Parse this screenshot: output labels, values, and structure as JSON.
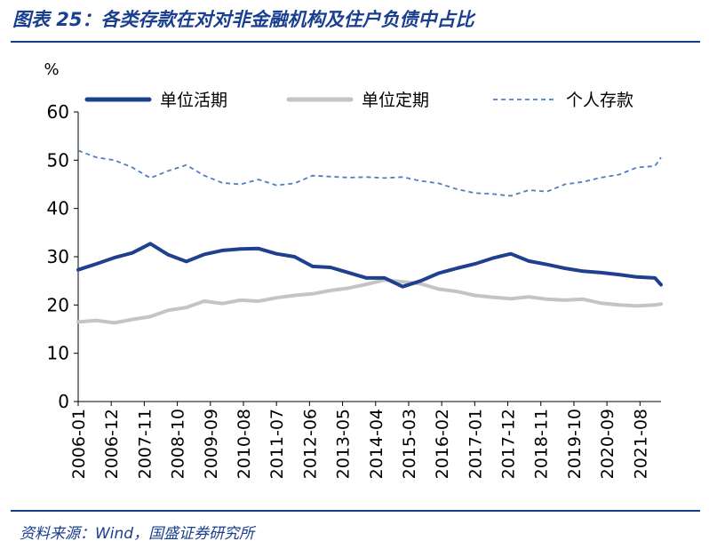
{
  "figure": {
    "title": "图表 25：各类存款在对对非金融机构及住户负债中占比",
    "source": "资料来源：Wind，国盛证券研究所"
  },
  "colors": {
    "title": "#1a3f8f",
    "series_1": "#1f3f8f",
    "series_2": "#c4c4c4",
    "series_3": "#4f7fbf"
  },
  "chart_data": {
    "type": "line",
    "title": "",
    "xlabel": "",
    "ylabel": "%",
    "ylim": [
      0,
      60
    ],
    "yticks": [
      0,
      10,
      20,
      30,
      40,
      50,
      60
    ],
    "xticks": [
      "2006-01",
      "2006-12",
      "2007-11",
      "2008-10",
      "2009-09",
      "2010-08",
      "2011-07",
      "2012-06",
      "2013-05",
      "2014-04",
      "2015-03",
      "2016-02",
      "2017-01",
      "2017-12",
      "2018-11",
      "2019-10",
      "2020-09",
      "2021-08"
    ],
    "x_range": [
      "2006-01",
      "2022-03"
    ],
    "grid": false,
    "legend_position": "top",
    "x": [
      "2006-01",
      "2006-07",
      "2007-01",
      "2007-07",
      "2008-01",
      "2008-07",
      "2009-01",
      "2009-07",
      "2010-01",
      "2010-07",
      "2011-01",
      "2011-07",
      "2012-01",
      "2012-07",
      "2013-01",
      "2013-07",
      "2014-01",
      "2014-07",
      "2015-01",
      "2015-07",
      "2016-01",
      "2016-07",
      "2017-01",
      "2017-07",
      "2018-01",
      "2018-07",
      "2019-01",
      "2019-07",
      "2020-01",
      "2020-07",
      "2021-01",
      "2021-07",
      "2022-01",
      "2022-03"
    ],
    "series": [
      {
        "name": "单位活期",
        "style": "solid-thick",
        "values": [
          27.3,
          28.5,
          29.8,
          30.8,
          32.7,
          30.4,
          29.0,
          30.5,
          31.3,
          31.6,
          31.7,
          30.6,
          30.0,
          28.0,
          27.8,
          26.7,
          25.6,
          25.6,
          23.8,
          25.0,
          26.6,
          27.6,
          28.5,
          29.7,
          30.6,
          29.1,
          28.4,
          27.6,
          27.0,
          26.7,
          26.3,
          25.8,
          25.6,
          24.2
        ]
      },
      {
        "name": "单位定期",
        "style": "solid-thick",
        "values": [
          16.5,
          16.8,
          16.3,
          17.0,
          17.6,
          18.9,
          19.5,
          20.8,
          20.3,
          21.0,
          20.8,
          21.5,
          22.0,
          22.3,
          23.0,
          23.5,
          24.3,
          25.2,
          24.8,
          24.4,
          23.3,
          22.8,
          22.0,
          21.6,
          21.3,
          21.7,
          21.2,
          21.0,
          21.2,
          20.4,
          20.0,
          19.8,
          20.0,
          20.2
        ]
      },
      {
        "name": "个人存款",
        "style": "dashed",
        "values": [
          52.0,
          50.6,
          50.0,
          48.5,
          46.3,
          47.8,
          49.0,
          46.8,
          45.3,
          45.0,
          46.0,
          44.8,
          45.2,
          46.8,
          46.6,
          46.4,
          46.5,
          46.3,
          46.5,
          45.7,
          45.2,
          44.0,
          43.2,
          43.0,
          42.6,
          43.8,
          43.5,
          45.0,
          45.5,
          46.4,
          47.0,
          48.5,
          48.8,
          50.6
        ]
      }
    ]
  }
}
